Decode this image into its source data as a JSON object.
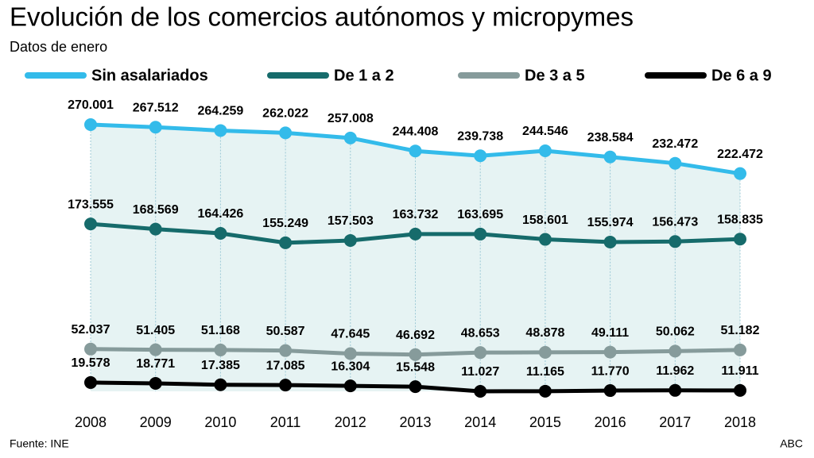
{
  "chart_data": {
    "type": "line",
    "title": "Evolución de los comercios autónomos y micropymes",
    "subtitle": "Datos de enero",
    "source": "Fuente: INE",
    "credit": "ABC",
    "x": [
      2008,
      2009,
      2010,
      2011,
      2012,
      2013,
      2014,
      2015,
      2016,
      2017,
      2018
    ],
    "series": [
      {
        "name": "Sin asalariados",
        "color": "#33bbea",
        "values": [
          270001,
          267512,
          264259,
          262022,
          257008,
          244408,
          239738,
          244546,
          238584,
          232472,
          222472
        ],
        "value_labels": [
          "270.001",
          "267.512",
          "264.259",
          "262.022",
          "257.008",
          "244.408",
          "239.738",
          "244.546",
          "238.584",
          "232.472",
          "222.472"
        ]
      },
      {
        "name": "De 1 a 2",
        "color": "#166b6b",
        "values": [
          173555,
          168569,
          164426,
          155249,
          157503,
          163732,
          163695,
          158601,
          155974,
          156473,
          158835
        ],
        "value_labels": [
          "173.555",
          "168.569",
          "164.426",
          "155.249",
          "157.503",
          "163.732",
          "163.695",
          "158.601",
          "155.974",
          "156.473",
          "158.835"
        ]
      },
      {
        "name": "De 3 a 5",
        "color": "#869b9b",
        "values": [
          52037,
          51405,
          51168,
          50587,
          47645,
          46692,
          48653,
          48878,
          49111,
          50062,
          51182
        ],
        "value_labels": [
          "52.037",
          "51.405",
          "51.168",
          "50.587",
          "47.645",
          "46.692",
          "48.653",
          "48.878",
          "49.111",
          "50.062",
          "51.182"
        ]
      },
      {
        "name": "De 6 a 9",
        "color": "#000000",
        "values": [
          19578,
          18771,
          17385,
          17085,
          16304,
          15548,
          11027,
          11165,
          11770,
          11962,
          11911
        ],
        "value_labels": [
          "19.578",
          "18.771",
          "17.385",
          "17.085",
          "16.304",
          "15.548",
          "11.027",
          "11.165",
          "11.770",
          "11.962",
          "11.911"
        ]
      }
    ]
  }
}
